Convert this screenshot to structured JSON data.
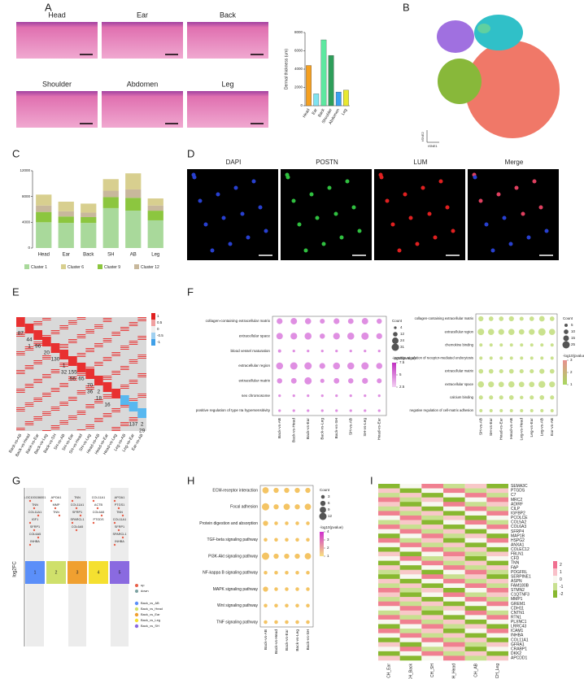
{
  "panel_labels": [
    "A",
    "B",
    "C",
    "D",
    "E",
    "F",
    "G",
    "H",
    "I"
  ],
  "tissue_images": {
    "labels": [
      "Head",
      "Ear",
      "Back",
      "Shoulder",
      "Abdomen",
      "Leg"
    ]
  },
  "tsne": {
    "x_label": "tSNE1",
    "y_label": "tSNE2"
  },
  "if_images": {
    "labels": [
      "DAPI",
      "POSTN",
      "LUM",
      "Merge"
    ],
    "colors": [
      "#000000",
      "#2a9d3a",
      "#e02020",
      "#b0309a"
    ]
  },
  "heatmap_e": {
    "columns": [
      "Back-vs-AB",
      "Back-vs-Head",
      "Back-vs-Ear",
      "Back-vs-Leg",
      "Back-vs-SH",
      "SH-vs-AB",
      "SH-vs-Ear",
      "SH-vs-Head",
      "SH-vs-Leg",
      "Head-vs-AB",
      "Head-vs-Ear",
      "Head-vs-Leg",
      "Leg-vs-AB",
      "Leg-vs-Ear",
      "Ear-vs-AB"
    ],
    "up_counts": [
      87,
      44,
      96,
      20,
      130,
      1,
      155,
      65,
      70,
      2,
      null,
      null,
      null,
      null,
      2
    ],
    "down_counts": [
      null,
      1,
      null,
      null,
      null,
      32,
      56,
      null,
      36,
      18,
      16,
      null,
      null,
      137,
      29
    ],
    "colorbar_ticks": [
      1,
      0.5,
      0,
      -0.5,
      -1
    ]
  },
  "chart_data": [
    {
      "type": "bar",
      "y_label": "Dermal thickness (um)",
      "categories": [
        "Head",
        "Ear",
        "Back",
        "Shoulder",
        "Abdomen",
        "Leg"
      ],
      "values": [
        4400,
        1300,
        7200,
        5500,
        1500,
        1700
      ],
      "colors": [
        "#f5a020",
        "#7fe3f0",
        "#5de8a0",
        "#2e9e5a",
        "#3aa0f0",
        "#e8e830"
      ],
      "ylim": [
        0,
        8000
      ],
      "yticks": [
        0,
        2000,
        4000,
        6000,
        8000
      ]
    },
    {
      "type": "stacked_bar",
      "categories": [
        "Head",
        "Ear",
        "Back",
        "SH",
        "AB",
        "Leg"
      ],
      "series": [
        {
          "name": "Cluster 1",
          "color": "#a9d99b",
          "values": [
            4000,
            3900,
            3900,
            6200,
            5800,
            4300
          ]
        },
        {
          "name": "Cluster 6",
          "color": "#d8cf8f",
          "values": [
            1700,
            1500,
            1400,
            1800,
            2500,
            1100
          ]
        },
        {
          "name": "Cluster 9",
          "color": "#8cc63f",
          "values": [
            1600,
            1000,
            900,
            1700,
            2000,
            1500
          ]
        },
        {
          "name": "Cluster 12",
          "color": "#c8b89c",
          "values": [
            1000,
            800,
            700,
            1000,
            1300,
            800
          ]
        }
      ],
      "stack_order": [
        0,
        2,
        3,
        1
      ],
      "ylim": [
        0,
        12000
      ],
      "yticks": [
        0,
        4000,
        8000,
        12000
      ]
    },
    {
      "type": "dot",
      "categories": [
        "Back-vs-AB",
        "Back-vs-Head",
        "Back-vs-Ear",
        "Back-vs-Leg",
        "Back-vs-SH",
        "SH-vs-AB",
        "SH-vs-Leg",
        "Head-vs-Ear"
      ],
      "terms": [
        "collagen-containing extracellular matrix",
        "extracellular space",
        "blood vessel maturation",
        "extracellular region",
        "extracellular matrix",
        "sex chromosome",
        "positive regulation of type IIa hypersensitivity"
      ],
      "counts": [
        [
          20,
          24,
          22,
          14,
          20,
          18,
          24,
          16
        ],
        [
          24,
          26,
          28,
          16,
          26,
          28,
          31,
          20
        ],
        [
          6,
          4,
          4,
          4,
          4,
          4,
          4,
          4
        ],
        [
          28,
          31,
          31,
          20,
          28,
          28,
          31,
          22
        ],
        [
          16,
          18,
          30,
          10,
          18,
          16,
          20,
          14
        ],
        [
          4,
          4,
          4,
          4,
          4,
          4,
          4,
          4
        ],
        [
          4,
          4,
          4,
          4,
          4,
          4,
          4,
          4
        ]
      ],
      "color": "#d46ad8",
      "size_title": "Count",
      "size_legend": [
        4,
        12,
        24,
        31
      ],
      "color_title": "-log10(pvalue)",
      "color_legend": [
        7.5,
        5.0,
        2.5
      ],
      "gradient": [
        "#c02fc0",
        "#f2d0f2"
      ]
    },
    {
      "type": "dot",
      "categories": [
        "SH-vs-AB",
        "SH-vs-Ear",
        "Head-vs-Ear",
        "Head-vs-AB",
        "Leg-vs-Head",
        "Leg-vs-Ear",
        "Leg-vs-AB",
        "Ear-vs-AB"
      ],
      "terms": [
        "collagen-containing extracellular matrix",
        "extracellular region",
        "chemokine binding",
        "positive regulation of receptor-mediated endocytosis",
        "extracellular matrix",
        "extracellular space",
        "calcium binding",
        "negative regulation of cell-matrix adhesion"
      ],
      "counts": [
        [
          12,
          10,
          10,
          12,
          8,
          10,
          14,
          10
        ],
        [
          20,
          18,
          16,
          18,
          14,
          16,
          25,
          18
        ],
        [
          5,
          5,
          5,
          5,
          5,
          5,
          5,
          5
        ],
        [
          5,
          5,
          5,
          5,
          5,
          5,
          5,
          5
        ],
        [
          10,
          10,
          8,
          10,
          8,
          8,
          12,
          10
        ],
        [
          18,
          16,
          14,
          18,
          14,
          14,
          22,
          16
        ],
        [
          8,
          8,
          8,
          10,
          6,
          8,
          10,
          8
        ],
        [
          5,
          5,
          5,
          5,
          5,
          5,
          5,
          5
        ]
      ],
      "color": "#b8d868",
      "size_title": "Count",
      "size_legend": [
        5,
        10,
        15,
        25
      ],
      "color_title": "-log10(pvalue)",
      "color_legend": [
        3,
        2,
        1
      ],
      "gradient": [
        "#e89090",
        "#a8d860"
      ]
    },
    {
      "type": "dot",
      "categories": [
        "Back-vs-AB",
        "Back-vs-Head",
        "Back-vs-Ear",
        "Back-vs-Leg",
        "Back-vs-SH"
      ],
      "terms": [
        "ECM-receptor interaction",
        "Focal adhesion",
        "Protein digestion and absorption",
        "TGF-beta signaling pathway",
        "PI3K-Akt signaling pathway",
        "NF-kappa B signaling pathway",
        "MAPK signaling pathway",
        "Wnt signaling pathway",
        "TNF signaling pathway"
      ],
      "counts": [
        [
          9,
          6,
          6,
          6,
          6
        ],
        [
          12,
          6,
          9,
          6,
          9
        ],
        [
          6,
          3,
          3,
          3,
          3
        ],
        [
          3,
          3,
          3,
          3,
          3
        ],
        [
          12,
          6,
          6,
          6,
          9
        ],
        [
          3,
          3,
          3,
          3,
          3
        ],
        [
          6,
          3,
          3,
          3,
          3
        ],
        [
          3,
          3,
          3,
          3,
          3
        ],
        [
          3,
          3,
          3,
          3,
          3
        ]
      ],
      "color": "#f0b030",
      "size_title": "Count",
      "size_legend": [
        3,
        6,
        9,
        12
      ],
      "color_title": "-log10(pvalue)",
      "color_legend": [
        4,
        3,
        2,
        1
      ],
      "gradient": [
        "#d030d0",
        "#f8e080"
      ]
    }
  ],
  "strip_g": {
    "y_label": "log2FC",
    "legend": [
      {
        "name": "up",
        "color": "#e8604a"
      },
      {
        "name": "down",
        "color": "#7aa0a0"
      }
    ],
    "columns": [
      {
        "label": "1",
        "name": "Back_vs_AB",
        "color": "#5b8ff9",
        "genes": [
          "LOC100156001",
          "TNN",
          "COL11A1",
          "IGF1",
          "SFRP1",
          "COL6A5",
          "INHBA"
        ]
      },
      {
        "label": "2",
        "name": "Back_vs_Head",
        "color": "#cfe06b",
        "genes": [
          "APOA1",
          "MMP",
          "TNN"
        ]
      },
      {
        "label": "3",
        "name": "Back_vs_Ear",
        "color": "#f0a030",
        "genes": [
          "TNN",
          "COL11A1",
          "SFRP1",
          "SPARCL1",
          "COL6A5"
        ]
      },
      {
        "label": "4",
        "name": "Back_vs_Leg",
        "color": "#f5e030",
        "genes": [
          "COL11A1",
          "ACTB",
          "COL6A5",
          "PTGDS"
        ]
      },
      {
        "label": "5",
        "name": "Back_vs_SH",
        "color": "#8a6ae0",
        "genes": [
          "APOA1",
          "PTGS1",
          "TNN",
          "COL11A1",
          "SFRP1",
          "SPARCL1",
          "INHBA"
        ]
      }
    ]
  },
  "heatmap_i": {
    "columns": [
      "CH_Ear",
      "CH_Back",
      "CH_SH",
      "CH_Head",
      "CH_AB",
      "CH_Leg"
    ],
    "colorbar_ticks": [
      2,
      1,
      0,
      -1,
      -2
    ],
    "genes": [
      {
        "name": "SEMA3C",
        "color": "#e0318f"
      },
      {
        "name": "PTGDS",
        "color": "#3aa0e0"
      },
      {
        "name": "C7",
        "color": "#3aa0e0"
      },
      {
        "name": "MRC2",
        "color": "#000000"
      },
      {
        "name": "ADIRF",
        "color": "#000000"
      },
      {
        "name": "CILP",
        "color": "#000000"
      },
      {
        "name": "IGFBP2",
        "color": "#e0318f"
      },
      {
        "name": "PCOLCE",
        "color": "#e0318f"
      },
      {
        "name": "COL5A2",
        "color": "#e0318f"
      },
      {
        "name": "COL6A3",
        "color": "#e0318f"
      },
      {
        "name": "SFRP4",
        "color": "#e0318f"
      },
      {
        "name": "MAP1B",
        "color": "#000000"
      },
      {
        "name": "HSPG2",
        "color": "#000000"
      },
      {
        "name": "ANXA1",
        "color": "#000000"
      },
      {
        "name": "COLEC12",
        "color": "#000000"
      },
      {
        "name": "FBLN1",
        "color": "#000000"
      },
      {
        "name": "CFD",
        "color": "#000000"
      },
      {
        "name": "TNN",
        "color": "#e0318f"
      },
      {
        "name": "FAP",
        "color": "#000000"
      },
      {
        "name": "PDGFRL",
        "color": "#3aa0e0"
      },
      {
        "name": "SERPINE1",
        "color": "#3aa0e0"
      },
      {
        "name": "ASPN",
        "color": "#000000"
      },
      {
        "name": "FAM180B",
        "color": "#000000"
      },
      {
        "name": "STMN2",
        "color": "#000000"
      },
      {
        "name": "C1QTNF3",
        "color": "#000000"
      },
      {
        "name": "MMP1",
        "color": "#e0318f"
      },
      {
        "name": "GREM1",
        "color": "#e0318f"
      },
      {
        "name": "CDH11",
        "color": "#000000"
      },
      {
        "name": "CNTN1",
        "color": "#000000"
      },
      {
        "name": "RTN1",
        "color": "#000000"
      },
      {
        "name": "PLXNC1",
        "color": "#000000"
      },
      {
        "name": "LRRC43",
        "color": "#000000"
      },
      {
        "name": "ICAM1",
        "color": "#e0318f"
      },
      {
        "name": "INHBA",
        "color": "#e0318f"
      },
      {
        "name": "COL11A1",
        "color": "#e0318f"
      },
      {
        "name": "GFRA1",
        "color": "#000000"
      },
      {
        "name": "CRABP1",
        "color": "#000000"
      },
      {
        "name": "DKK2",
        "color": "#000000"
      },
      {
        "name": "APCDD1",
        "color": "#000000"
      }
    ]
  }
}
